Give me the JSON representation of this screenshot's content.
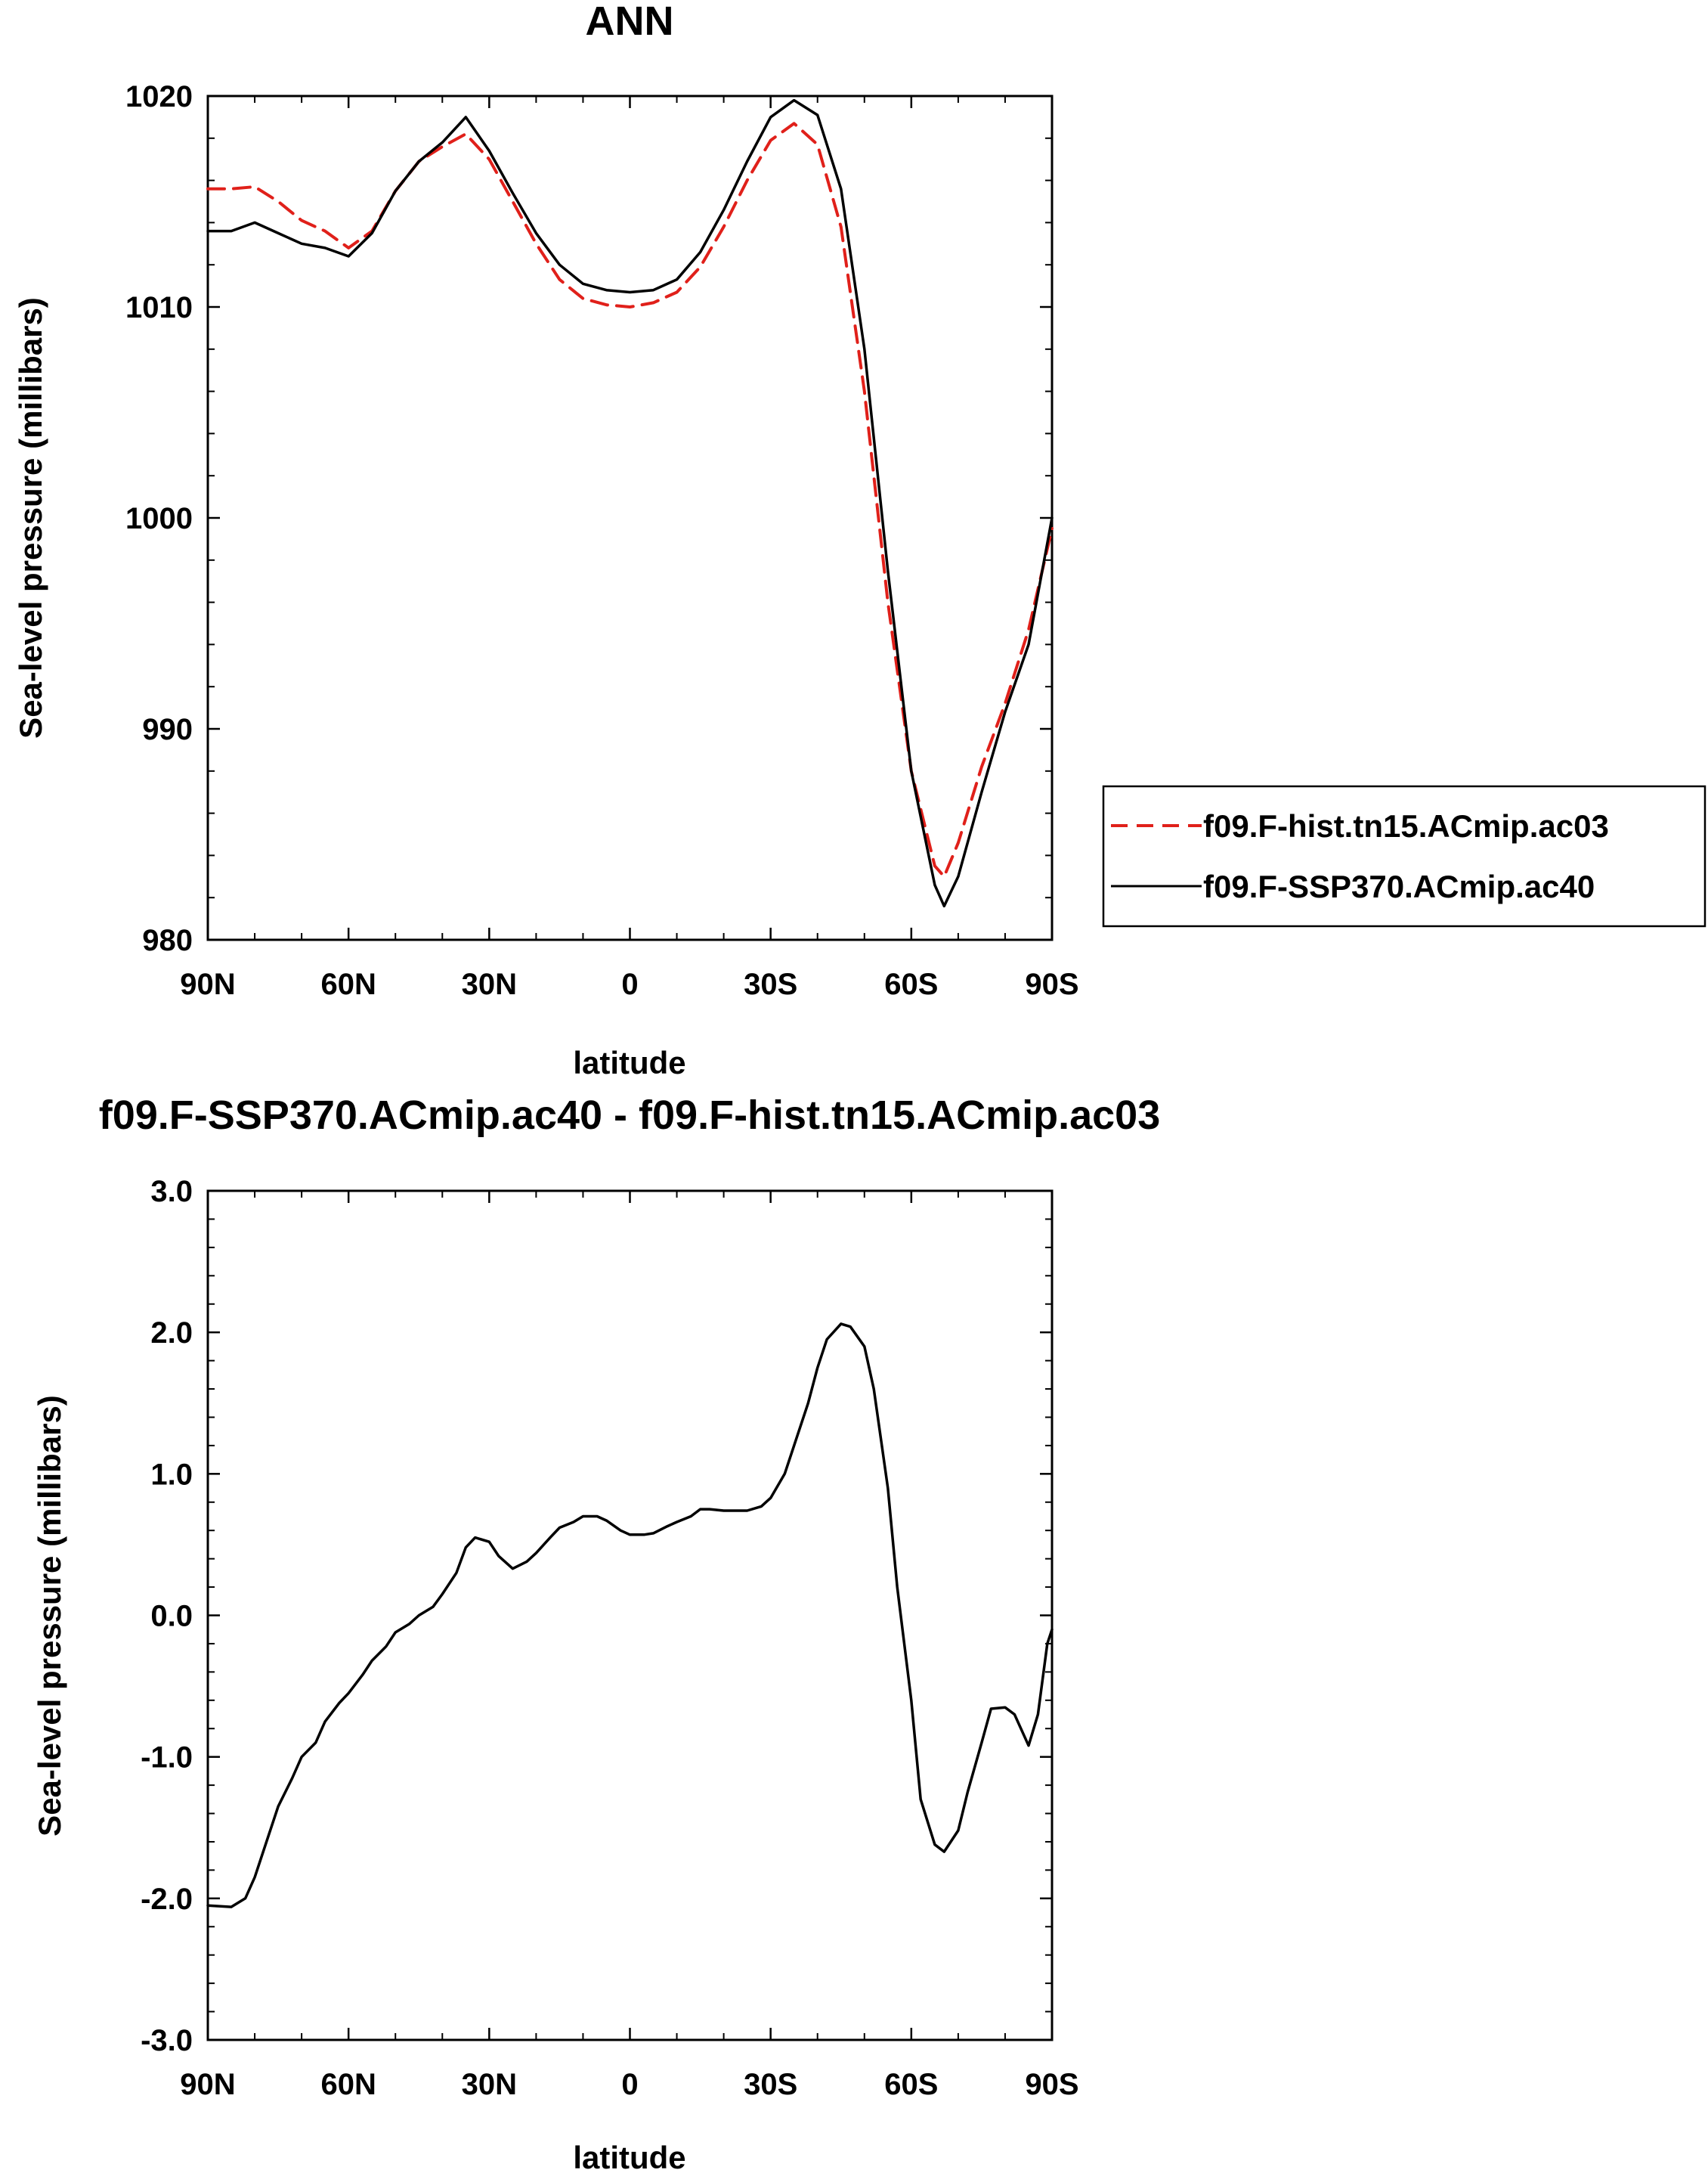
{
  "chart_data": [
    {
      "type": "line",
      "title": "ANN",
      "xlabel": "latitude",
      "ylabel": "Sea-level pressure (millibars)",
      "ylim": [
        980,
        1020
      ],
      "yticks": [
        980,
        990,
        1000,
        1010,
        1020
      ],
      "ytick_labels": [
        "980",
        "990",
        "1000",
        "1010",
        "1020"
      ],
      "xlim": [
        90,
        -90
      ],
      "xticks": [
        90,
        60,
        30,
        0,
        -30,
        -60,
        -90
      ],
      "xtick_labels": [
        "90N",
        "60N",
        "30N",
        "0",
        "30S",
        "60S",
        "90S"
      ],
      "grid": false,
      "legend_position": "right",
      "series": [
        {
          "name": "f09.F-hist.tn15.ACmip.ac03",
          "color": "#e0201a",
          "dash": "dashed",
          "x": [
            90,
            85,
            80,
            75,
            70,
            65,
            60,
            55,
            50,
            45,
            40,
            35,
            30,
            25,
            20,
            15,
            10,
            5,
            0,
            -5,
            -10,
            -15,
            -20,
            -25,
            -30,
            -35,
            -40,
            -45,
            -50,
            -55,
            -60,
            -65,
            -67,
            -70,
            -75,
            -80,
            -85,
            -90
          ],
          "values": [
            1015.6,
            1015.6,
            1015.7,
            1015.0,
            1014.1,
            1013.6,
            1012.8,
            1013.6,
            1015.5,
            1016.9,
            1017.6,
            1018.2,
            1017.0,
            1015.0,
            1013.0,
            1011.3,
            1010.4,
            1010.1,
            1010.0,
            1010.2,
            1010.7,
            1011.9,
            1013.8,
            1016.0,
            1017.9,
            1018.7,
            1017.7,
            1013.8,
            1006.0,
            996.0,
            988.0,
            983.5,
            983.0,
            984.6,
            988.2,
            991.2,
            994.7,
            999.5
          ]
        },
        {
          "name": "f09.F-SSP370.ACmip.ac40",
          "color": "#000000",
          "dash": "solid",
          "x": [
            90,
            85,
            80,
            75,
            70,
            65,
            60,
            55,
            50,
            45,
            40,
            35,
            30,
            25,
            20,
            15,
            10,
            5,
            0,
            -5,
            -10,
            -15,
            -20,
            -25,
            -30,
            -35,
            -40,
            -45,
            -50,
            -55,
            -60,
            -65,
            -67,
            -70,
            -75,
            -80,
            -85,
            -90
          ],
          "values": [
            1013.6,
            1013.6,
            1014.0,
            1013.5,
            1013.0,
            1012.8,
            1012.4,
            1013.5,
            1015.5,
            1016.9,
            1017.8,
            1019.0,
            1017.4,
            1015.4,
            1013.5,
            1012.0,
            1011.1,
            1010.8,
            1010.7,
            1010.8,
            1011.3,
            1012.6,
            1014.6,
            1016.9,
            1019.0,
            1019.8,
            1019.1,
            1015.6,
            1008.0,
            997.5,
            988.0,
            982.6,
            981.6,
            983.0,
            987.0,
            990.8,
            994.0,
            1000.0
          ]
        }
      ]
    },
    {
      "type": "line",
      "title": "f09.F-SSP370.ACmip.ac40 - f09.F-hist.tn15.ACmip.ac03",
      "xlabel": "latitude",
      "ylabel": "Sea-level pressure (millibars)",
      "ylim": [
        -3.0,
        3.0
      ],
      "yticks": [
        -3.0,
        -2.0,
        -1.0,
        0.0,
        1.0,
        2.0,
        3.0
      ],
      "ytick_labels": [
        "-3.0",
        "-2.0",
        "-1.0",
        "0.0",
        "1.0",
        "2.0",
        "3.0"
      ],
      "xlim": [
        90,
        -90
      ],
      "xticks": [
        90,
        60,
        30,
        0,
        -30,
        -60,
        -90
      ],
      "xtick_labels": [
        "90N",
        "60N",
        "30N",
        "0",
        "30S",
        "60S",
        "90S"
      ],
      "grid": false,
      "series": [
        {
          "color": "#000000",
          "dash": "solid",
          "x": [
            90,
            85,
            82,
            80,
            77,
            75,
            72,
            70,
            67,
            65,
            62,
            60,
            57,
            55,
            52,
            50,
            47,
            45,
            42,
            40,
            37,
            35,
            33,
            30,
            28,
            25,
            22,
            20,
            17,
            15,
            12,
            10,
            7,
            5,
            2,
            0,
            -3,
            -5,
            -8,
            -10,
            -13,
            -15,
            -17,
            -20,
            -23,
            -25,
            -28,
            -30,
            -33,
            -35,
            -38,
            -40,
            -42,
            -45,
            -47,
            -50,
            -52,
            -55,
            -57,
            -60,
            -62,
            -65,
            -67,
            -70,
            -72,
            -75,
            -77,
            -80,
            -82,
            -85,
            -87,
            -89,
            -90
          ],
          "values": [
            -2.05,
            -2.06,
            -2.0,
            -1.85,
            -1.55,
            -1.35,
            -1.15,
            -1.0,
            -0.9,
            -0.75,
            -0.62,
            -0.55,
            -0.42,
            -0.32,
            -0.22,
            -0.12,
            -0.06,
            0.0,
            0.06,
            0.15,
            0.3,
            0.48,
            0.55,
            0.52,
            0.42,
            0.33,
            0.38,
            0.44,
            0.55,
            0.62,
            0.66,
            0.7,
            0.7,
            0.67,
            0.6,
            0.57,
            0.57,
            0.58,
            0.63,
            0.66,
            0.7,
            0.75,
            0.75,
            0.74,
            0.74,
            0.74,
            0.77,
            0.83,
            1.0,
            1.2,
            1.5,
            1.75,
            1.95,
            2.06,
            2.04,
            1.9,
            1.6,
            0.9,
            0.2,
            -0.6,
            -1.3,
            -1.62,
            -1.67,
            -1.52,
            -1.25,
            -0.9,
            -0.66,
            -0.65,
            -0.7,
            -0.92,
            -0.7,
            -0.2,
            -0.1
          ]
        }
      ]
    }
  ]
}
